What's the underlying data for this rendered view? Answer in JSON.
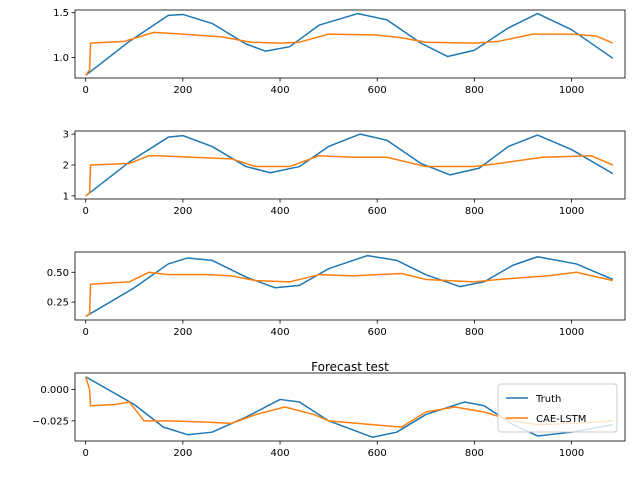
{
  "figure": {
    "title": "Forecast test",
    "legend": [
      "Truth",
      "CAE-LSTM"
    ],
    "colors": {
      "truth": "#1f77b4",
      "cae_lstm": "#ff7f0e"
    }
  },
  "chart_data": [
    {
      "type": "line",
      "x_ticks": [
        0,
        200,
        400,
        600,
        800,
        1000
      ],
      "y_ticks": [
        1.0,
        1.5
      ],
      "y_tick_labels": [
        "1.0",
        "1.5"
      ],
      "xlim": [
        -22,
        1110
      ],
      "ylim": [
        0.77,
        1.53
      ],
      "series": [
        {
          "name": "Truth",
          "x": [
            0,
            90,
            170,
            200,
            260,
            330,
            370,
            420,
            480,
            560,
            620,
            690,
            745,
            800,
            870,
            930,
            1000,
            1085
          ],
          "y": [
            0.8,
            1.18,
            1.47,
            1.48,
            1.38,
            1.15,
            1.07,
            1.12,
            1.36,
            1.49,
            1.42,
            1.16,
            1.01,
            1.08,
            1.33,
            1.49,
            1.31,
            0.99
          ]
        },
        {
          "name": "CAE-LSTM",
          "x": [
            0,
            8,
            10,
            80,
            140,
            200,
            280,
            340,
            400,
            440,
            500,
            600,
            650,
            700,
            800,
            850,
            920,
            1000,
            1050,
            1085
          ],
          "y": [
            0.8,
            0.86,
            1.16,
            1.18,
            1.28,
            1.26,
            1.23,
            1.17,
            1.16,
            1.17,
            1.26,
            1.25,
            1.22,
            1.17,
            1.16,
            1.18,
            1.26,
            1.26,
            1.24,
            1.16
          ]
        }
      ]
    },
    {
      "type": "line",
      "x_ticks": [
        0,
        200,
        400,
        600,
        800,
        1000
      ],
      "y_ticks": [
        1,
        2,
        3
      ],
      "y_tick_labels": [
        "1",
        "2",
        "3"
      ],
      "xlim": [
        -22,
        1110
      ],
      "ylim": [
        0.9,
        3.1
      ],
      "series": [
        {
          "name": "Truth",
          "x": [
            0,
            90,
            170,
            200,
            260,
            330,
            380,
            440,
            500,
            565,
            620,
            690,
            750,
            810,
            870,
            930,
            1000,
            1085
          ],
          "y": [
            1.0,
            2.1,
            2.9,
            2.95,
            2.6,
            1.95,
            1.75,
            1.95,
            2.6,
            3.0,
            2.8,
            2.05,
            1.68,
            1.9,
            2.6,
            2.97,
            2.5,
            1.72
          ]
        },
        {
          "name": "CAE-LSTM",
          "x": [
            0,
            8,
            10,
            90,
            130,
            150,
            220,
            300,
            350,
            420,
            480,
            550,
            620,
            700,
            800,
            850,
            940,
            1000,
            1040,
            1085
          ],
          "y": [
            1.0,
            1.1,
            2.0,
            2.05,
            2.3,
            2.3,
            2.25,
            2.2,
            1.95,
            1.95,
            2.3,
            2.25,
            2.25,
            1.95,
            1.95,
            2.05,
            2.25,
            2.28,
            2.3,
            2.0
          ]
        }
      ]
    },
    {
      "type": "line",
      "x_ticks": [
        0,
        200,
        400,
        600,
        800,
        1000
      ],
      "y_ticks": [
        0.25,
        0.5
      ],
      "y_tick_labels": [
        "0.25",
        "0.50"
      ],
      "xlim": [
        -22,
        1110
      ],
      "ylim": [
        0.1,
        0.67
      ],
      "series": [
        {
          "name": "Truth",
          "x": [
            0,
            100,
            170,
            210,
            260,
            330,
            390,
            440,
            500,
            580,
            640,
            700,
            770,
            820,
            880,
            930,
            1010,
            1085
          ],
          "y": [
            0.13,
            0.37,
            0.57,
            0.62,
            0.6,
            0.46,
            0.37,
            0.39,
            0.53,
            0.64,
            0.6,
            0.48,
            0.38,
            0.42,
            0.56,
            0.63,
            0.57,
            0.44
          ]
        },
        {
          "name": "CAE-LSTM",
          "x": [
            0,
            8,
            10,
            90,
            130,
            170,
            250,
            300,
            350,
            420,
            480,
            550,
            650,
            700,
            800,
            850,
            950,
            1010,
            1085
          ],
          "y": [
            0.13,
            0.15,
            0.4,
            0.42,
            0.5,
            0.48,
            0.48,
            0.47,
            0.43,
            0.42,
            0.48,
            0.47,
            0.49,
            0.44,
            0.42,
            0.44,
            0.47,
            0.5,
            0.43
          ]
        }
      ]
    },
    {
      "type": "line",
      "title": "Forecast test",
      "x_ticks": [
        0,
        200,
        400,
        600,
        800,
        1000
      ],
      "y_ticks": [
        0.0,
        -0.025
      ],
      "y_tick_labels": [
        "0.000",
        "−0.025"
      ],
      "xlim": [
        -22,
        1110
      ],
      "ylim": [
        -0.041,
        0.013
      ],
      "legend": {
        "position": "bottom-right",
        "entries": [
          "Truth",
          "CAE-LSTM"
        ]
      },
      "series": [
        {
          "name": "Truth",
          "x": [
            0,
            100,
            160,
            210,
            260,
            330,
            400,
            440,
            500,
            590,
            640,
            700,
            780,
            820,
            880,
            930,
            1000,
            1085
          ],
          "y": [
            0.01,
            -0.012,
            -0.03,
            -0.036,
            -0.034,
            -0.022,
            -0.008,
            -0.01,
            -0.025,
            -0.038,
            -0.034,
            -0.02,
            -0.01,
            -0.013,
            -0.028,
            -0.037,
            -0.034,
            -0.028
          ]
        },
        {
          "name": "CAE-LSTM",
          "x": [
            0,
            8,
            10,
            60,
            90,
            120,
            170,
            250,
            300,
            350,
            410,
            470,
            500,
            560,
            650,
            700,
            760,
            820,
            880,
            930,
            1000,
            1085
          ],
          "y": [
            0.01,
            0.0,
            -0.013,
            -0.012,
            -0.01,
            -0.025,
            -0.025,
            -0.026,
            -0.027,
            -0.02,
            -0.014,
            -0.02,
            -0.025,
            -0.027,
            -0.03,
            -0.018,
            -0.014,
            -0.018,
            -0.025,
            -0.028,
            -0.027,
            -0.025
          ]
        }
      ]
    }
  ]
}
